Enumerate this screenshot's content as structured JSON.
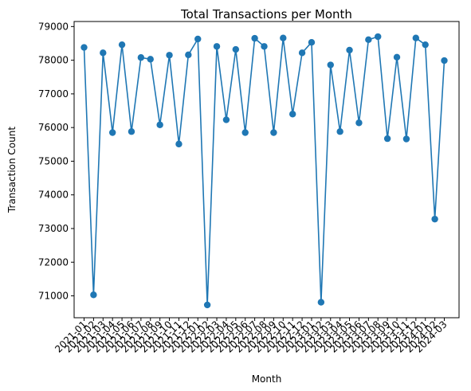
{
  "chart_data": {
    "type": "line",
    "title": "Total Transactions per Month",
    "xlabel": "Month",
    "ylabel": "Transaction Count",
    "ylim": [
      70350,
      79150
    ],
    "yticks": [
      71000,
      72000,
      73000,
      74000,
      75000,
      76000,
      77000,
      78000,
      79000
    ],
    "grid": false,
    "marker": "circle",
    "color": "#1f77b4",
    "categories": [
      "2021-01",
      "2021-02",
      "2021-03",
      "2021-04",
      "2021-05",
      "2021-06",
      "2021-07",
      "2021-08",
      "2021-09",
      "2021-10",
      "2021-11",
      "2021-12",
      "2022-01",
      "2022-02",
      "2022-03",
      "2022-04",
      "2022-05",
      "2022-06",
      "2022-07",
      "2022-08",
      "2022-09",
      "2022-10",
      "2022-11",
      "2022-12",
      "2023-01",
      "2023-02",
      "2023-03",
      "2023-04",
      "2023-05",
      "2023-06",
      "2023-07",
      "2023-08",
      "2023-09",
      "2023-10",
      "2023-11",
      "2023-12",
      "2024-01",
      "2024-02",
      "2024-03"
    ],
    "values": [
      78380,
      71030,
      78220,
      75850,
      78460,
      75880,
      78080,
      78030,
      76080,
      78150,
      75510,
      78160,
      78630,
      70730,
      78410,
      76230,
      78320,
      75850,
      78650,
      78410,
      75850,
      78660,
      76400,
      78220,
      78530,
      70810,
      77860,
      75880,
      78300,
      76140,
      78610,
      78700,
      75670,
      78090,
      75660,
      78660,
      78460,
      73280,
      77990
    ]
  }
}
